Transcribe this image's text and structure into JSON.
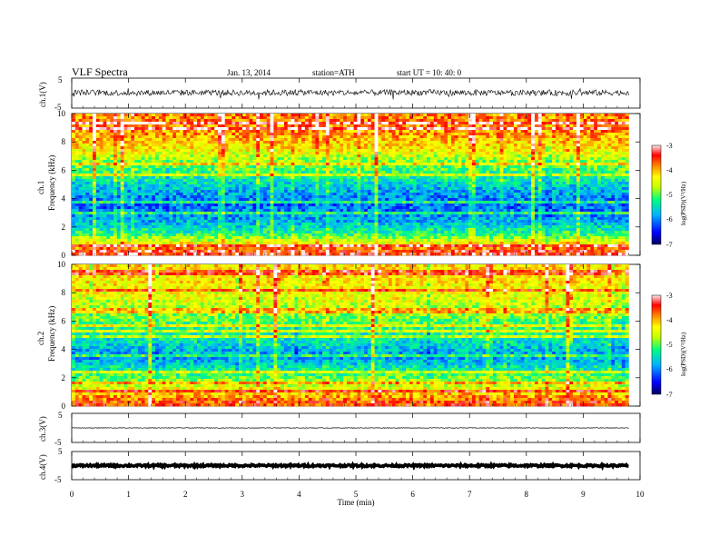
{
  "header": {
    "title": "VLF  Spectra",
    "date": "Jan. 13, 2014",
    "station": "station=ATH",
    "start": "start  UT  =   10: 40: 0"
  },
  "axes": {
    "xlabel": "Time  (min)",
    "x_ticks": [
      "0",
      "1",
      "2",
      "3",
      "4",
      "5",
      "6",
      "7",
      "8",
      "9",
      "10"
    ],
    "ch1_wave_label": "ch.1(V)",
    "ch2_wave_label": "ch.3(V)",
    "ch4_wave_label": "ch.4(V)",
    "spec1_label": "ch.1",
    "spec2_label": "ch.2",
    "freq_label": "Frequency  (kHz)",
    "freq_ticks": [
      "0",
      "2",
      "4",
      "6",
      "8",
      "10"
    ],
    "wave_ticks": [
      "5",
      "-5"
    ],
    "colorbar_label": "log(PSD)(V²/Hz)",
    "colorbar_ticks": [
      "-3",
      "-4",
      "-5",
      "-6",
      "-7"
    ]
  },
  "colors": {
    "scale": [
      "#000060",
      "#0000ff",
      "#00b4ff",
      "#00ff80",
      "#c8ff00",
      "#ffff00",
      "#ff8000",
      "#ff0000",
      "#ffffff"
    ]
  },
  "chart_data": [
    {
      "type": "line",
      "title": "ch.1(V)",
      "xlabel": "Time (min)",
      "ylabel": "ch.1(V)",
      "xlim": [
        0,
        10
      ],
      "ylim": [
        -5,
        5
      ],
      "x": [
        0,
        1,
        2,
        3,
        4,
        5,
        6,
        7,
        8,
        9,
        9.8
      ],
      "y": [
        0.2,
        0.1,
        0.2,
        0.1,
        0.2,
        0.1,
        0.2,
        0.1,
        0.1,
        0.1,
        0.2
      ],
      "envelope_amplitude": 1.0
    },
    {
      "type": "heatmap",
      "title": "ch.1",
      "ylabel": "Frequency (kHz)",
      "xlim": [
        0,
        10
      ],
      "ylim": [
        0,
        10
      ],
      "data_end_min": 9.8,
      "colorbar": {
        "label": "log(PSD)(V²/Hz)",
        "range": [
          -7,
          -3
        ]
      },
      "profile_freq_khz": [
        0.25,
        0.75,
        1.5,
        2.5,
        3.5,
        4.5,
        5.5,
        6.5,
        7.5,
        8.5,
        9.5
      ],
      "profile_logpsd": [
        -3.4,
        -4.2,
        -5.2,
        -5.8,
        -6.1,
        -5.8,
        -5.3,
        -4.9,
        -4.3,
        -3.9,
        -3.8
      ]
    },
    {
      "type": "heatmap",
      "title": "ch.2",
      "ylabel": "Frequency (kHz)",
      "xlim": [
        0,
        10
      ],
      "ylim": [
        0,
        10
      ],
      "data_end_min": 9.8,
      "colorbar": {
        "label": "log(PSD)(V²/Hz)",
        "range": [
          -7,
          -3
        ]
      },
      "profile_freq_khz": [
        0.25,
        0.75,
        1.5,
        2.5,
        3.5,
        4.5,
        5.5,
        6.5,
        7.5,
        8.5,
        9.5
      ],
      "profile_logpsd": [
        -3.6,
        -4.0,
        -4.6,
        -5.3,
        -5.9,
        -5.5,
        -5.2,
        -4.8,
        -4.5,
        -4.3,
        -4.2
      ]
    },
    {
      "type": "line",
      "title": "ch.3(V)",
      "xlim": [
        0,
        10
      ],
      "ylim": [
        -5,
        5
      ],
      "x": [
        0,
        9.8
      ],
      "y": [
        0.0,
        0.0
      ],
      "envelope_amplitude": 0.1
    },
    {
      "type": "line",
      "title": "ch.4(V)",
      "xlim": [
        0,
        10
      ],
      "ylim": [
        -5,
        5
      ],
      "x": [
        0,
        9.8
      ],
      "y": [
        0.0,
        0.0
      ],
      "envelope_amplitude": 0.35
    }
  ]
}
